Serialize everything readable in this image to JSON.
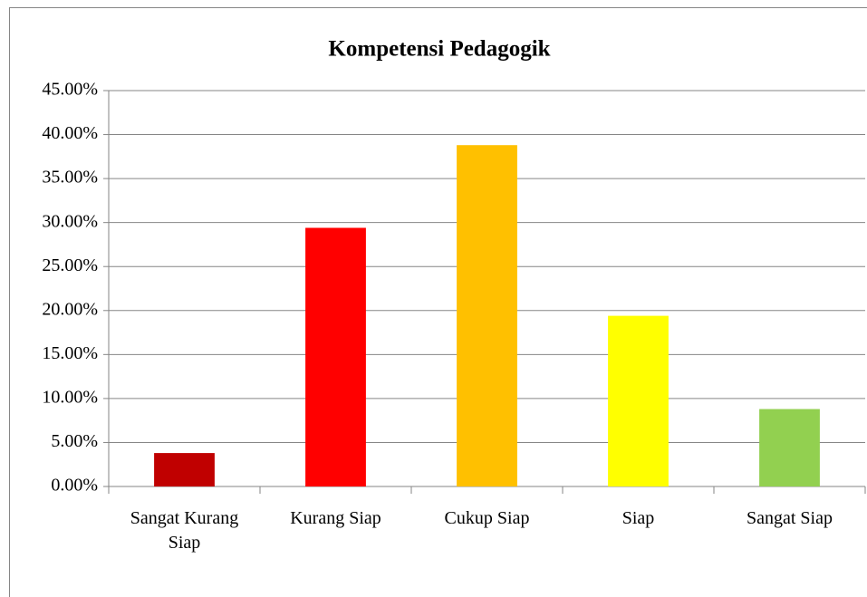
{
  "chart_data": {
    "type": "bar",
    "title": "Kompetensi Pedagogik",
    "categories": [
      "Sangat Kurang Siap",
      "Kurang Siap",
      "Cukup Siap",
      "Siap",
      "Sangat Siap"
    ],
    "values": [
      3.8,
      29.4,
      38.8,
      19.4,
      8.8
    ],
    "colors": [
      "#c00000",
      "#ff0000",
      "#ffc000",
      "#ffff00",
      "#92d050"
    ],
    "ylim": [
      0,
      45
    ],
    "yticks": [
      {
        "value": 0,
        "label": "0.00%"
      },
      {
        "value": 5,
        "label": "5.00%"
      },
      {
        "value": 10,
        "label": "10.00%"
      },
      {
        "value": 15,
        "label": "15.00%"
      },
      {
        "value": 20,
        "label": "20.00%"
      },
      {
        "value": 25,
        "label": "25.00%"
      },
      {
        "value": 30,
        "label": "30.00%"
      },
      {
        "value": 35,
        "label": "35.00%"
      },
      {
        "value": 40,
        "label": "40.00%"
      },
      {
        "value": 45,
        "label": "45.00%"
      }
    ],
    "grid": true
  }
}
